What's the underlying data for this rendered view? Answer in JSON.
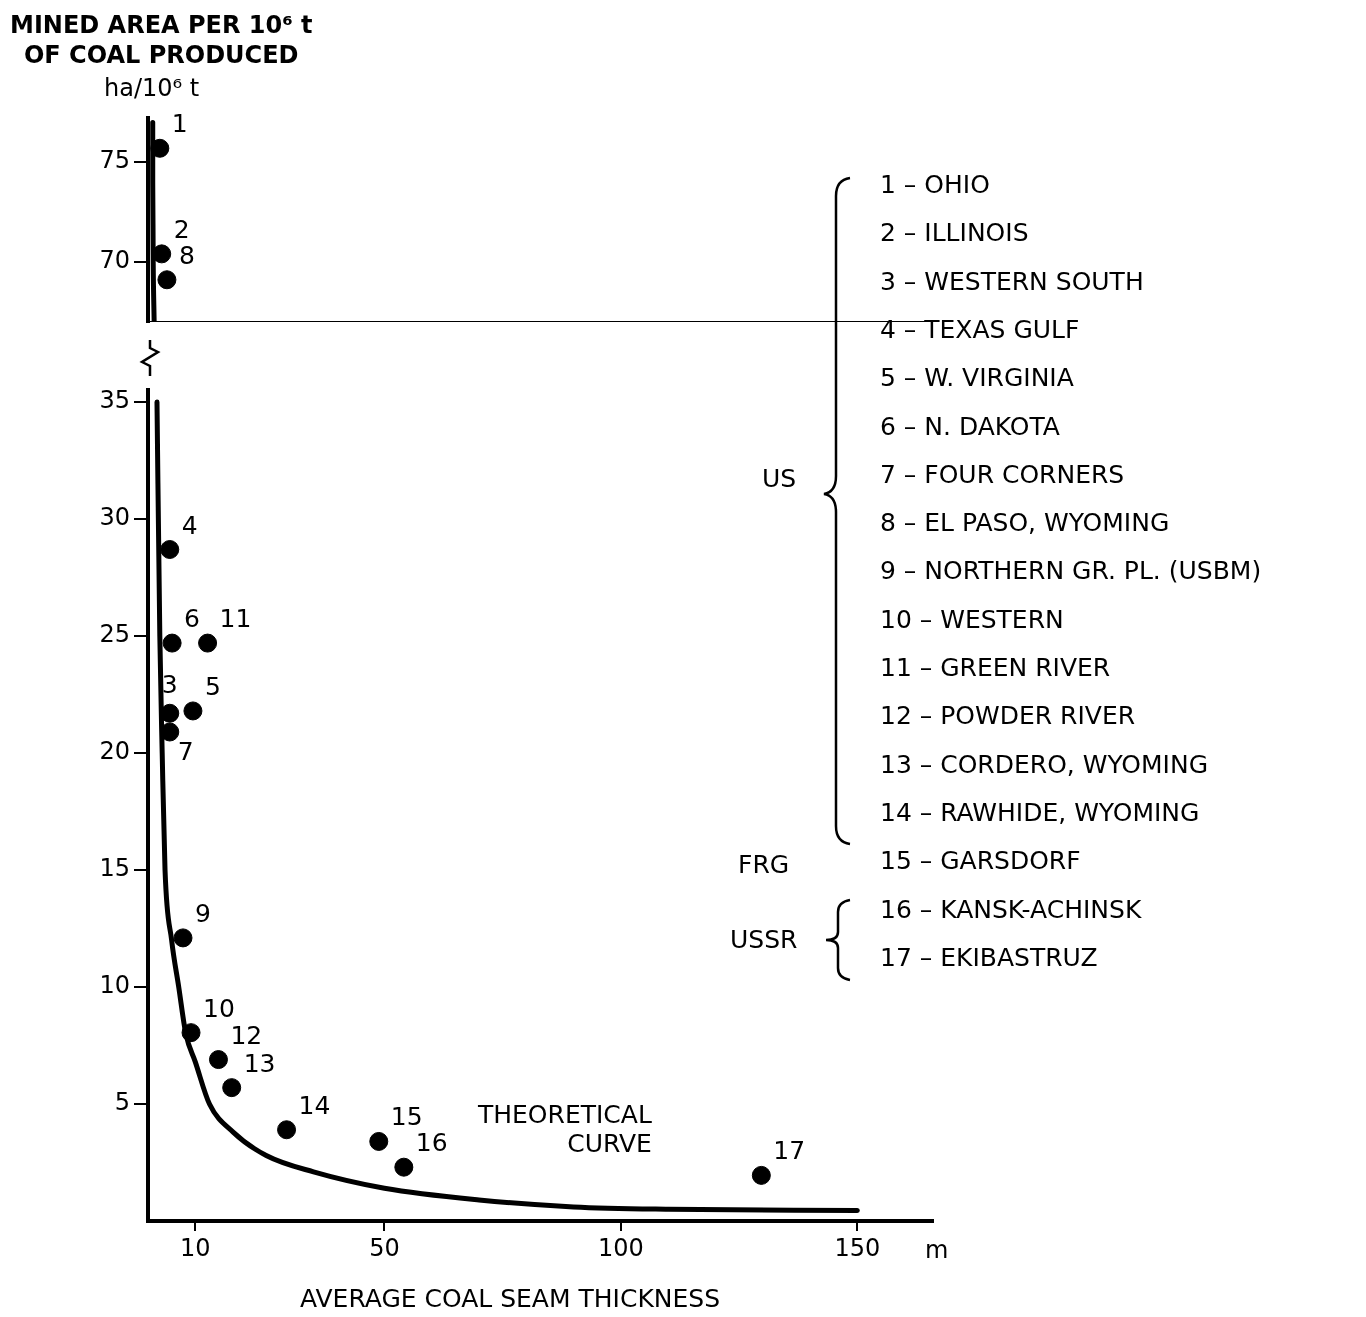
{
  "chart_data": [
    {
      "type": "scatter",
      "ylabel": "MINED AREA PER 10⁶ t\nOF COAL PRODUCED",
      "tick_labels": "y",
      "xlim": [
        0,
        166
      ],
      "ylim": [
        67,
        77.2
      ],
      "yticks": [
        70,
        75
      ],
      "series": [
        {
          "type": "scatter",
          "marker": "circle",
          "color": "#000000",
          "x": [
            2.5,
            2.9,
            4.0
          ],
          "values": [
            75.7,
            70.4,
            69.1
          ]
        },
        {
          "type": "line",
          "marker": "none",
          "color": "#000000",
          "x": [
            1.0,
            1.0,
            1.1,
            1.3
          ],
          "values": [
            77,
            74,
            70,
            67
          ]
        }
      ],
      "annotations": [
        "ha/10⁶ t",
        {
          "text": "1",
          "x": 2.5,
          "y": 75.7
        },
        {
          "text": "2",
          "x": 2.9,
          "y": 70.4
        },
        {
          "text": "8",
          "x": 4.0,
          "y": 69.1
        }
      ]
    },
    {
      "type": "scatter",
      "xlabel": "AVERAGE COAL SEAM THICKNESS",
      "xlim": [
        0,
        166
      ],
      "ylim": [
        0,
        35.5
      ],
      "xticks": [
        10,
        50,
        100,
        150
      ],
      "yticks": [
        5,
        10,
        15,
        20,
        25,
        30,
        35
      ],
      "series": [
        {
          "type": "scatter",
          "marker": "circle",
          "color": "#000000",
          "x": [
            4.6,
            5.1,
            12.6,
            4.6,
            9.5,
            4.6,
            7.4,
            9.1,
            14.9,
            17.7,
            29.3,
            48.8,
            54.1,
            129.7
          ],
          "values": [
            28.7,
            24.7,
            24.7,
            21.7,
            21.8,
            20.9,
            12.1,
            8.05,
            6.9,
            5.7,
            3.9,
            3.4,
            2.3,
            1.95
          ]
        },
        {
          "type": "line",
          "marker": "none",
          "color": "#000000",
          "x": [
            1.9,
            2.5,
            3,
            3.6,
            5,
            6.5,
            8,
            10,
            13,
            18,
            25,
            35,
            50,
            70,
            90,
            110,
            150
          ],
          "values": [
            35,
            25,
            20,
            15,
            12,
            10,
            8,
            6.8,
            5,
            3.8,
            2.8,
            2.1,
            1.4,
            0.9,
            0.6,
            0.5,
            0.45
          ]
        }
      ],
      "annotations": [
        "m",
        "1 – OHIO",
        "2 – ILLINOIS",
        "3 – WESTERN SOUTH",
        "4 – TEXAS GULF",
        "5 – W. VIRGINIA",
        "6 – N. DAKOTA",
        "7 – FOUR CORNERS",
        "8 – EL PASO, WYOMING",
        "9 – NORTHERN GR. PL. (USBM)",
        "10 – WESTERN",
        "11 – GREEN RIVER",
        "12 – POWDER RIVER",
        "13 – CORDERO, WYOMING",
        "14 – RAWHIDE, WYOMING",
        "15 – GARSDORF",
        "16 – KANSK-ACHINSK",
        "17 – EKIBASTRUZ",
        "US",
        "FRG",
        "USSR",
        "THEORETICAL\nCURVE",
        {
          "text": "4",
          "x": 4.6,
          "y": 28.7
        },
        {
          "text": "6",
          "x": 5.1,
          "y": 24.7
        },
        {
          "text": "11",
          "x": 12.6,
          "y": 24.7
        },
        {
          "text": "3",
          "x": 4.6,
          "y": 21.7
        },
        {
          "text": "5",
          "x": 9.5,
          "y": 21.8
        },
        {
          "text": "7",
          "x": 4.6,
          "y": 20.9
        },
        {
          "text": "9",
          "x": 7.4,
          "y": 12.1
        },
        {
          "text": "10",
          "x": 9.1,
          "y": 8.05
        },
        {
          "text": "12",
          "x": 14.9,
          "y": 6.9
        },
        {
          "text": "13",
          "x": 17.7,
          "y": 5.7
        },
        {
          "text": "14",
          "x": 29.3,
          "y": 3.9
        },
        {
          "text": "15",
          "x": 48.8,
          "y": 3.4
        },
        {
          "text": "16",
          "x": 54.1,
          "y": 2.3
        },
        {
          "text": "17",
          "x": 129.7,
          "y": 1.95
        }
      ]
    }
  ]
}
